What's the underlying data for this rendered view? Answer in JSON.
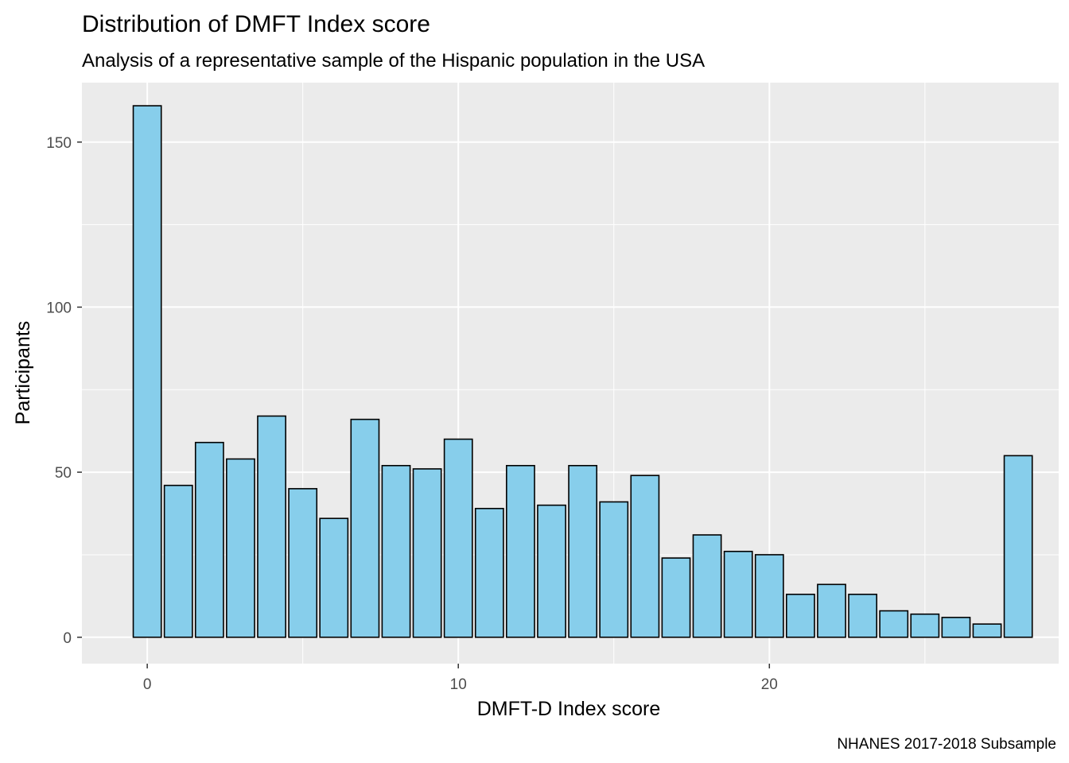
{
  "chart_data": {
    "type": "bar",
    "title": "Distribution of DMFT Index score",
    "subtitle": "Analysis of a representative sample of the Hispanic population in the USA",
    "caption": "NHANES 2017-2018 Subsample",
    "xlabel": "DMFT-D Index score",
    "ylabel": "Participants",
    "x": [
      0,
      1,
      2,
      3,
      4,
      5,
      6,
      7,
      8,
      9,
      10,
      11,
      12,
      13,
      14,
      15,
      16,
      17,
      18,
      19,
      20,
      21,
      22,
      23,
      24,
      25,
      26,
      27,
      28
    ],
    "values": [
      161,
      46,
      59,
      54,
      67,
      45,
      36,
      66,
      52,
      51,
      60,
      39,
      52,
      40,
      52,
      41,
      49,
      24,
      31,
      26,
      25,
      13,
      16,
      13,
      8,
      7,
      6,
      4,
      55
    ],
    "xlim": [
      -2.1,
      29.3
    ],
    "ylim": [
      -8,
      168
    ],
    "x_ticks": [
      0,
      10,
      20
    ],
    "y_ticks": [
      0,
      50,
      100,
      150
    ],
    "x_tick_labels": [
      "0",
      "10",
      "20"
    ],
    "y_tick_labels": [
      "0",
      "50",
      "100",
      "150"
    ],
    "grid": true,
    "colors": {
      "bar_fill": "#87CEEB",
      "bar_outline": "#000000",
      "panel_background": "#EBEBEB",
      "grid": "#FFFFFF"
    }
  }
}
